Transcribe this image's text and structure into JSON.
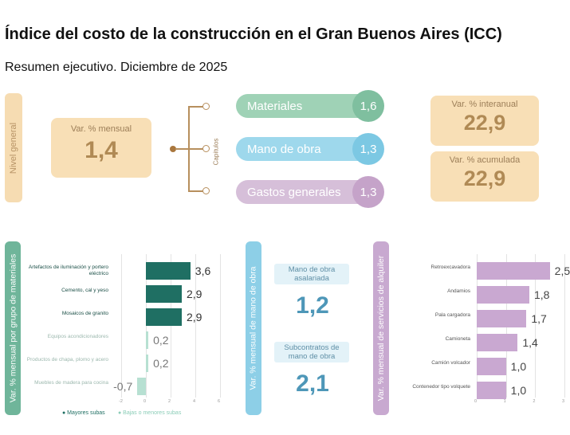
{
  "title": "Índice del costo de la construcción en el Gran Buenos Aires (ICC)",
  "subtitle": "Resumen ejecutivo. Diciembre de 2025",
  "nivel_general": {
    "side_label": "Nivel general",
    "card_label": "Var. % mensual",
    "card_value": "1,4"
  },
  "capitulos": {
    "label": "Capítulos",
    "items": [
      {
        "label": "Materiales",
        "value": "1,6",
        "color": "#7fbf9f"
      },
      {
        "label": "Mano de obra",
        "value": "1,3",
        "color": "#7cc8e3"
      },
      {
        "label": "Gastos generales",
        "value": "1,3",
        "color": "#c5a3c9"
      }
    ]
  },
  "interanual": {
    "label": "Var. % interanual",
    "value": "22,9"
  },
  "acumulada": {
    "label": "Var. % acumulada",
    "value": "22,9"
  },
  "materiales_panel": {
    "side_label": "Var. % mensual por grupo de materiales",
    "legend_up": "● Mayores subas",
    "legend_down": "● Bajas o menores subas",
    "axis_ticks": [
      "-2",
      "0",
      "2",
      "4",
      "6"
    ]
  },
  "mano_obra_panel": {
    "side_label": "Var. % mensual de mano de obra",
    "asalariada_label": "Mano de obra asalariada",
    "asalariada_value": "1,2",
    "subcontratos_label": "Subcontratos de mano de obra",
    "subcontratos_value": "2,1"
  },
  "alquiler_panel": {
    "side_label": "Var. % mensual de servicios de alquiler",
    "axis_ticks": [
      "0",
      "1",
      "2",
      "3"
    ]
  },
  "chart_data": [
    {
      "type": "bar",
      "orientation": "horizontal",
      "categories": [
        "Artefactos de iluminación y portero eléctrico",
        "Cemento, cal y yeso",
        "Mosaicos de granito",
        "Equipos acondicionadores",
        "Productos de chapa, plomo y acero",
        "Muebles de madera para cocina"
      ],
      "values": [
        3.6,
        2.9,
        2.9,
        0.2,
        0.2,
        -0.7
      ],
      "value_labels": [
        "3,6",
        "2,9",
        "2,9",
        "0,2",
        "0,2",
        "-0,7"
      ],
      "colors": [
        "#1f6f63",
        "#1f6f63",
        "#1f6f63",
        "#b7e0d2",
        "#b7e0d2",
        "#b7e0d2"
      ],
      "xlim": [
        -2,
        6
      ]
    },
    {
      "type": "bar",
      "orientation": "horizontal",
      "categories": [
        "Retroexcavadora",
        "Andamios",
        "Pala cargadora",
        "Camioneta",
        "Camión volcador",
        "Contenedor tipo volquete"
      ],
      "values": [
        2.5,
        1.8,
        1.7,
        1.4,
        1.0,
        1.0
      ],
      "value_labels": [
        "2,5",
        "1,8",
        "1,7",
        "1,4",
        "1,0",
        "1,0"
      ],
      "colors": [
        "#c9a8d1",
        "#c9a8d1",
        "#c9a8d1",
        "#c9a8d1",
        "#c9a8d1",
        "#c9a8d1"
      ],
      "xlim": [
        0,
        3
      ]
    }
  ]
}
